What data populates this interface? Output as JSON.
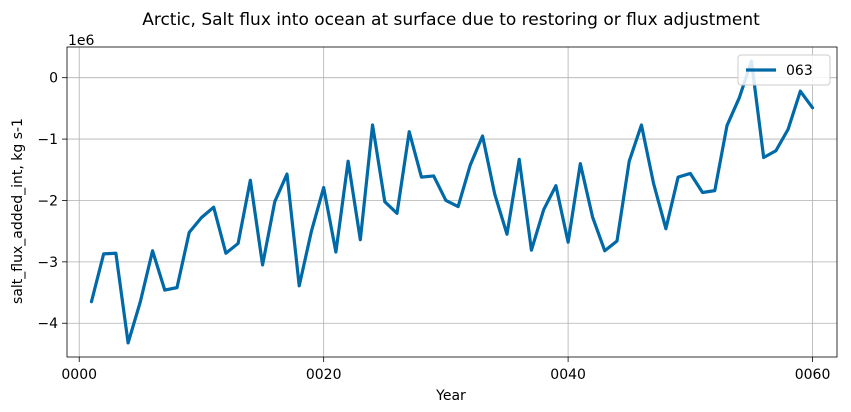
{
  "chart_data": {
    "type": "line",
    "title": "Arctic, Salt flux into ocean at surface due to restoring or flux adjustment",
    "xlabel": "Year",
    "ylabel": "salt_flux_added_int, kg s-1",
    "y_multiplier_label": "1e6",
    "xlim": [
      -1.0,
      62.0
    ],
    "ylim": [
      -4.55,
      0.5
    ],
    "x_ticks": [
      0,
      20,
      40,
      60
    ],
    "x_tick_labels": [
      "0000",
      "0020",
      "0040",
      "0060"
    ],
    "y_ticks": [
      -4,
      -3,
      -2,
      -1,
      0
    ],
    "y_tick_labels": [
      "−4",
      "−3",
      "−2",
      "−1",
      "0"
    ],
    "grid": true,
    "legend_position": "upper-right",
    "colors": {
      "line": "#0069a8"
    },
    "x": [
      1,
      2,
      3,
      4,
      5,
      6,
      7,
      8,
      9,
      10,
      11,
      12,
      13,
      14,
      15,
      16,
      17,
      18,
      19,
      20,
      21,
      22,
      23,
      24,
      25,
      26,
      27,
      28,
      29,
      30,
      31,
      32,
      33,
      34,
      35,
      36,
      37,
      38,
      39,
      40,
      41,
      42,
      43,
      44,
      45,
      46,
      47,
      48,
      49,
      50,
      51,
      52,
      53,
      54,
      55,
      56,
      57,
      58,
      59,
      60
    ],
    "series": [
      {
        "name": "063",
        "values": [
          -3.65,
          -2.87,
          -2.86,
          -4.32,
          -3.65,
          -2.82,
          -3.46,
          -3.42,
          -2.52,
          -2.28,
          -2.11,
          -2.86,
          -2.7,
          -1.67,
          -3.05,
          -2.02,
          -1.57,
          -3.39,
          -2.5,
          -1.79,
          -2.84,
          -1.36,
          -2.64,
          -0.77,
          -2.02,
          -2.21,
          -0.88,
          -1.62,
          -1.6,
          -2.0,
          -2.1,
          -1.42,
          -0.95,
          -1.9,
          -2.55,
          -1.33,
          -2.81,
          -2.15,
          -1.76,
          -2.68,
          -1.4,
          -2.27,
          -2.82,
          -2.66,
          -1.36,
          -0.77,
          -1.73,
          -2.46,
          -1.62,
          -1.56,
          -1.87,
          -1.84,
          -0.78,
          -0.33,
          0.27,
          -1.3,
          -1.19,
          -0.84,
          -0.22,
          -0.49
        ]
      }
    ]
  }
}
